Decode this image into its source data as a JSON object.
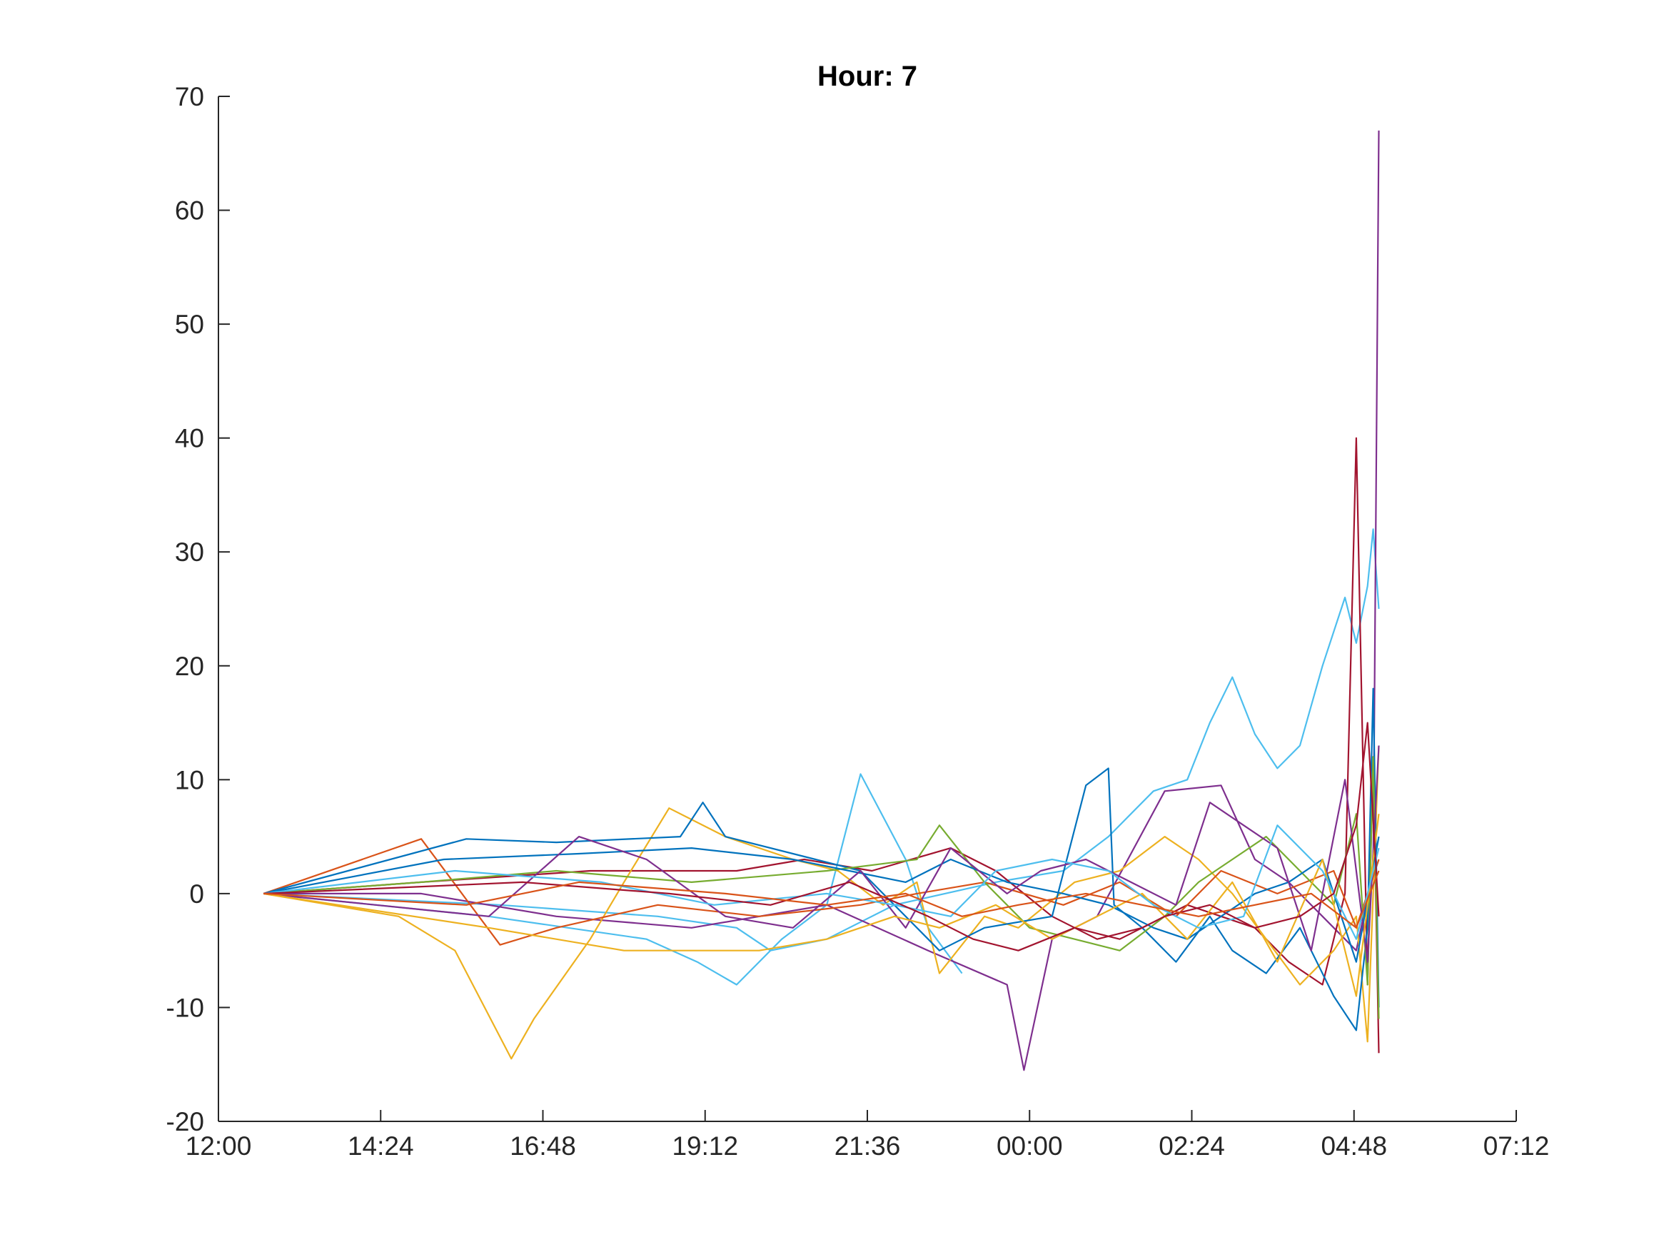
{
  "chart_data": {
    "type": "line",
    "title": "Hour: 7",
    "xlabel": "",
    "ylabel": "",
    "x_unit": "time of day (HH:MM)",
    "xlim": [
      "12:00",
      "07:12"
    ],
    "ylim": [
      -20,
      70
    ],
    "x_ticks": [
      "12:00",
      "14:24",
      "16:48",
      "19:12",
      "21:36",
      "00:00",
      "02:24",
      "04:48",
      "07:12"
    ],
    "y_ticks": [
      "-20",
      "-10",
      "0",
      "10",
      "20",
      "30",
      "40",
      "50",
      "60",
      "70"
    ],
    "grid": false,
    "legend": "none",
    "colors": [
      "#0072BD",
      "#D95319",
      "#EDB120",
      "#7E2F8E",
      "#77AC30",
      "#4DBEEE",
      "#A2142F"
    ],
    "series": [
      {
        "color": "#4DBEEE",
        "x": [
          "12:40",
          "16:10",
          "18:30",
          "19:40",
          "20:10",
          "21:00",
          "22:00",
          "23:30",
          "00:30",
          "01:10",
          "01:50",
          "02:20",
          "02:40",
          "03:00",
          "03:20",
          "03:40",
          "04:00",
          "04:20",
          "04:40",
          "04:50",
          "05:00",
          "05:05",
          "05:10"
        ],
        "y": [
          0,
          -1,
          -2,
          -3,
          -5,
          -4,
          -1,
          1,
          2,
          5,
          9,
          10,
          15,
          19,
          14,
          11,
          13,
          20,
          26,
          22,
          27,
          32,
          25
        ]
      },
      {
        "color": "#4DBEEE",
        "x": [
          "12:40",
          "16:00",
          "18:20",
          "19:05",
          "19:40",
          "20:20",
          "21:00",
          "21:30",
          "22:10",
          "22:30",
          "23:00"
        ],
        "y": [
          0,
          -2,
          -4,
          -6,
          -8,
          -4,
          -1,
          10.5,
          3,
          -3,
          -7
        ]
      },
      {
        "color": "#7E2F8E",
        "x": [
          "12:40",
          "15:00",
          "17:00",
          "19:00",
          "21:00",
          "22:30",
          "23:40",
          "23:55",
          "00:20",
          "01:00",
          "02:00",
          "02:50",
          "03:20",
          "03:50",
          "04:20",
          "04:50",
          "05:05",
          "05:10"
        ],
        "y": [
          0,
          0,
          -2,
          -3,
          -1,
          -5,
          -8,
          -15.5,
          -4,
          -2,
          9,
          9.5,
          3,
          1,
          -2,
          -5,
          2,
          67
        ]
      },
      {
        "color": "#A2142F",
        "x": [
          "12:40",
          "15:00",
          "17:30",
          "19:40",
          "20:40",
          "21:40",
          "22:50",
          "23:30",
          "00:20",
          "01:00",
          "01:40",
          "02:20",
          "02:50",
          "03:20",
          "03:50",
          "04:20",
          "04:40",
          "04:50",
          "05:00",
          "05:05",
          "05:10"
        ],
        "y": [
          0,
          1,
          2,
          2,
          3,
          2,
          4,
          2,
          -2,
          -4,
          -3,
          -1,
          -2,
          -3,
          -6,
          -8,
          0,
          40,
          -8,
          12,
          -14
        ]
      },
      {
        "color": "#EDB120",
        "x": [
          "12:40",
          "14:40",
          "15:30",
          "16:20",
          "16:40",
          "17:30",
          "18:00",
          "18:40",
          "19:30",
          "20:30",
          "21:10",
          "21:50",
          "22:20",
          "22:40",
          "23:20",
          "23:50",
          "00:40",
          "01:20",
          "02:00",
          "02:30",
          "03:00",
          "03:30",
          "04:00",
          "04:30",
          "04:50",
          "05:00",
          "05:10"
        ],
        "y": [
          0,
          -2,
          -5,
          -14.5,
          -11,
          -4,
          1,
          7.5,
          5,
          3,
          2,
          -1,
          1,
          -7,
          -2,
          -3,
          1,
          2,
          5,
          3,
          0,
          -4,
          -8,
          -5,
          -2,
          -13,
          13
        ]
      },
      {
        "color": "#D95319",
        "x": [
          "12:40",
          "15:00",
          "16:10",
          "17:00",
          "18:30",
          "20:00",
          "21:30",
          "22:20",
          "23:20",
          "00:30",
          "01:20",
          "02:10",
          "02:50",
          "03:40",
          "04:30",
          "04:50",
          "05:10"
        ],
        "y": [
          0,
          4.8,
          -4.5,
          -3,
          -1,
          -2,
          -1,
          0,
          1,
          -1,
          1,
          -2,
          2,
          0,
          2,
          -3,
          3
        ]
      },
      {
        "color": "#0072BD",
        "x": [
          "12:40",
          "15:40",
          "17:00",
          "18:50",
          "19:10",
          "19:30",
          "20:50",
          "21:30",
          "22:40",
          "23:20",
          "00:20",
          "00:50",
          "01:10",
          "01:15",
          "01:40",
          "02:10",
          "02:40",
          "03:00",
          "03:30",
          "04:00",
          "04:30",
          "04:50",
          "05:00",
          "05:05",
          "05:10"
        ],
        "y": [
          0,
          4.8,
          4.5,
          5,
          8,
          5,
          3,
          2,
          -5,
          -3,
          -2,
          9.5,
          11,
          -1,
          -3,
          -6,
          -2,
          -5,
          -7,
          -3,
          -9,
          -12,
          -3,
          18,
          -10
        ]
      },
      {
        "color": "#77AC30",
        "x": [
          "12:40",
          "15:00",
          "17:00",
          "19:00",
          "21:00",
          "22:20",
          "22:40",
          "23:20",
          "00:00",
          "00:40",
          "01:20",
          "02:00",
          "02:30",
          "03:00",
          "03:30",
          "04:00",
          "04:30",
          "04:50",
          "05:00",
          "05:05",
          "05:10"
        ],
        "y": [
          0,
          1,
          2,
          1,
          2,
          3,
          6,
          1,
          -3,
          -4,
          -5,
          -2,
          1,
          3,
          5,
          2,
          -1,
          7,
          -8,
          12,
          -11
        ]
      },
      {
        "color": "#0072BD",
        "x": [
          "12:40",
          "15:20",
          "17:20",
          "19:00",
          "20:30",
          "21:20",
          "22:10",
          "22:50",
          "23:40",
          "00:30",
          "01:10",
          "01:50",
          "02:20",
          "02:50",
          "03:20",
          "03:50",
          "04:20",
          "04:50",
          "05:10"
        ],
        "y": [
          0,
          3,
          3.5,
          4,
          3,
          2,
          1,
          3,
          1,
          0,
          -1,
          -3,
          -4,
          -2,
          0,
          1,
          3,
          -6,
          5
        ]
      },
      {
        "color": "#7E2F8E",
        "x": [
          "12:40",
          "16:00",
          "17:20",
          "18:20",
          "19:30",
          "20:30",
          "21:30",
          "22:10",
          "22:50",
          "23:40",
          "00:10",
          "00:50",
          "01:30",
          "02:10",
          "02:40",
          "03:10",
          "03:40",
          "04:10",
          "04:40",
          "05:00",
          "05:10"
        ],
        "y": [
          0,
          -2,
          5,
          3,
          -2,
          -3,
          2,
          -3,
          4,
          0,
          2,
          3,
          1,
          -1,
          8,
          6,
          4,
          -5,
          10,
          -6,
          13
        ]
      },
      {
        "color": "#EDB120",
        "x": [
          "12:40",
          "16:00",
          "18:00",
          "20:00",
          "21:00",
          "22:00",
          "22:40",
          "23:30",
          "00:20",
          "01:00",
          "01:40",
          "02:20",
          "03:00",
          "03:40",
          "04:20",
          "04:50",
          "05:10"
        ],
        "y": [
          0,
          -3,
          -5,
          -5,
          -4,
          -2,
          -3,
          -1,
          -4,
          -2,
          0,
          -4,
          1,
          -6,
          3,
          -9,
          7
        ]
      },
      {
        "color": "#4DBEEE",
        "x": [
          "12:40",
          "15:30",
          "17:40",
          "19:20",
          "21:00",
          "22:00",
          "22:50",
          "23:30",
          "00:20",
          "01:10",
          "01:50",
          "02:30",
          "03:10",
          "03:40",
          "04:20",
          "04:50",
          "05:10"
        ],
        "y": [
          0,
          2,
          1,
          -1,
          0,
          -1,
          -2,
          2,
          3,
          2,
          -1,
          -3,
          -2,
          6,
          2,
          -4,
          4
        ]
      },
      {
        "color": "#A2142F",
        "x": [
          "12:40",
          "16:30",
          "18:40",
          "20:10",
          "21:20",
          "22:30",
          "23:10",
          "23:50",
          "00:40",
          "01:20",
          "02:00",
          "02:40",
          "03:20",
          "04:00",
          "04:30",
          "04:50",
          "05:00",
          "05:10"
        ],
        "y": [
          0,
          1,
          0,
          -1,
          1,
          -2,
          -4,
          -5,
          -3,
          -4,
          -2,
          -1,
          -3,
          -2,
          0,
          6,
          15,
          -2
        ]
      },
      {
        "color": "#D95319",
        "x": [
          "12:40",
          "15:40",
          "17:20",
          "19:30",
          "21:00",
          "22:10",
          "23:00",
          "23:50",
          "00:50",
          "01:40",
          "02:30",
          "03:20",
          "04:10",
          "04:50",
          "05:10"
        ],
        "y": [
          0,
          -1,
          1,
          0,
          -1,
          0,
          -2,
          -1,
          0,
          -1,
          -2,
          -1,
          0,
          -3,
          2
        ]
      }
    ]
  }
}
